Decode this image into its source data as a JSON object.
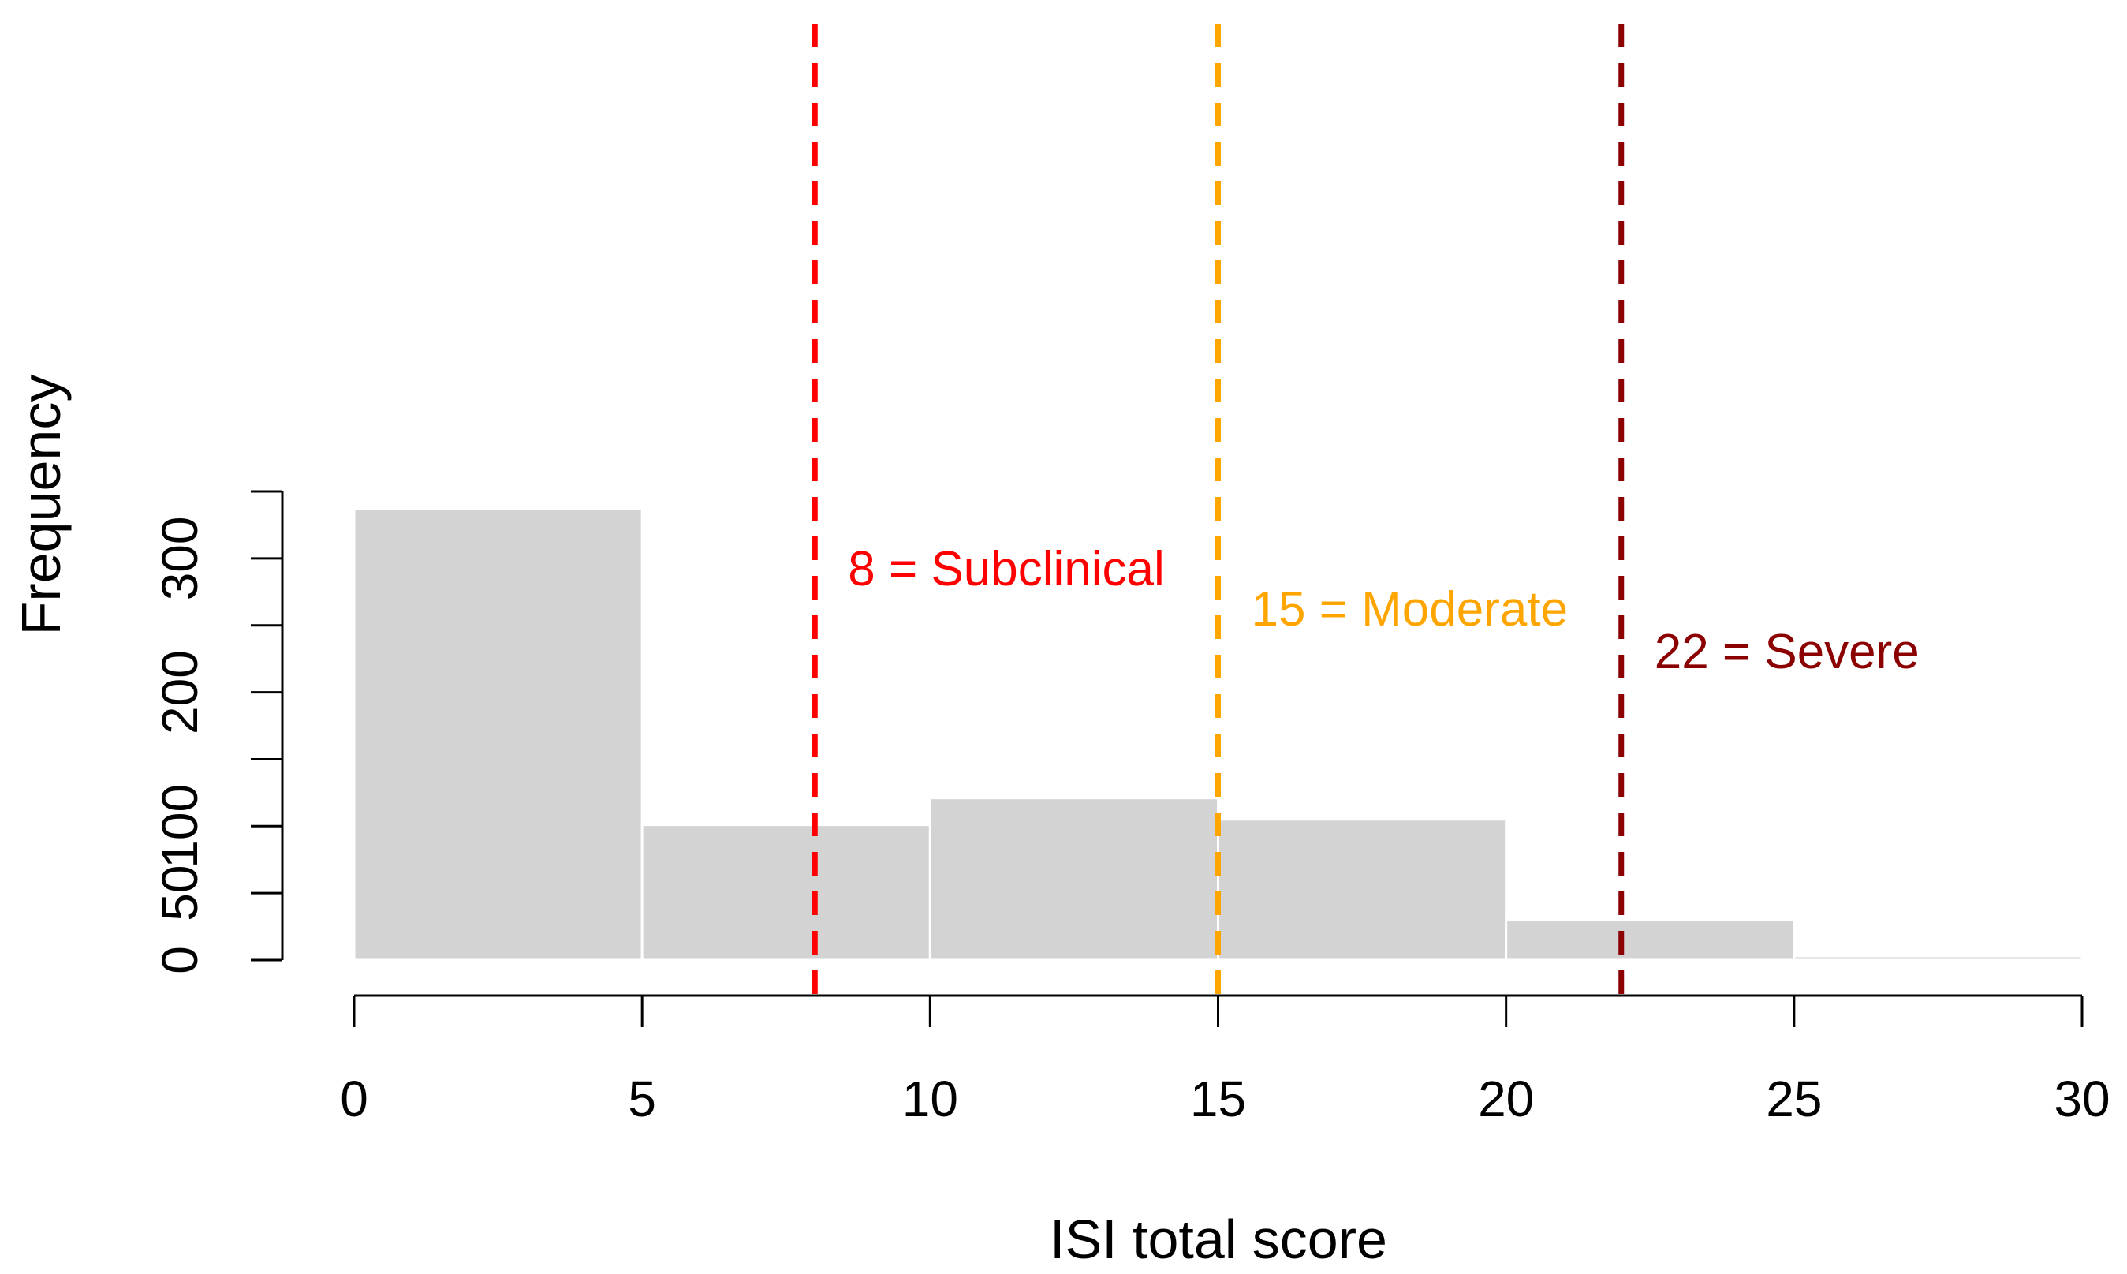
{
  "chart_data": {
    "type": "bar",
    "subtype": "histogram",
    "title": "",
    "xlabel": "ISI total score",
    "ylabel": "Frequency",
    "bins": [
      {
        "x0": 0,
        "x1": 5,
        "value": 337
      },
      {
        "x0": 5,
        "x1": 10,
        "value": 101
      },
      {
        "x0": 10,
        "x1": 15,
        "value": 121
      },
      {
        "x0": 15,
        "x1": 20,
        "value": 105
      },
      {
        "x0": 20,
        "x1": 25,
        "value": 30
      },
      {
        "x0": 25,
        "x1": 30,
        "value": 3
      }
    ],
    "xlim": [
      0,
      30
    ],
    "ylim": [
      0,
      350
    ],
    "x_ticks": [
      0,
      5,
      10,
      15,
      20,
      25,
      30
    ],
    "x_tick_labels": [
      "0",
      "5",
      "10",
      "15",
      "20",
      "25",
      "30"
    ],
    "y_ticks": [
      0,
      50,
      100,
      150,
      200,
      250,
      300,
      350
    ],
    "y_tick_labels": [
      "0",
      "50",
      "100",
      "",
      "200",
      "",
      "300",
      ""
    ],
    "bar_color": "#d3d3d3",
    "bar_border_color": "#ffffff",
    "grid": false,
    "legend": "none",
    "annotations": [
      {
        "x": 8,
        "label": "8 = Subclinical",
        "color": "#ff0000",
        "label_y": 280
      },
      {
        "x": 15,
        "label": "15 = Moderate",
        "color": "#ffa500",
        "label_y": 250
      },
      {
        "x": 22,
        "label": "22 = Severe",
        "color": "#8b0000",
        "label_y": 218
      }
    ]
  }
}
